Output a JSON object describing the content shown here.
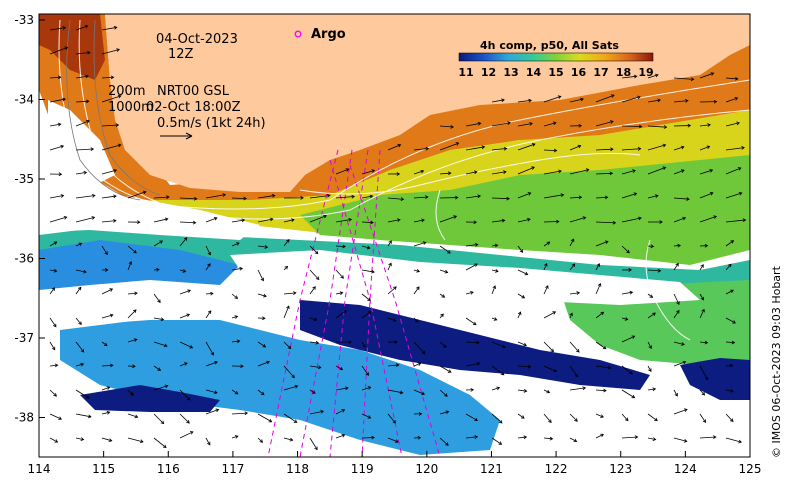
{
  "map": {
    "date": "04-Oct-2023",
    "hour": "12Z",
    "legend_argo": "Argo",
    "contour_label_200": "200m",
    "contour_label_1000": "1000m",
    "product": "NRT00 GSL",
    "product_time": "02-Oct 18:00Z",
    "scale_label": "0.5m/s (1kt 24h)",
    "colorbar_title": "4h comp, p50, All Sats",
    "colorbar_ticks": [
      "11",
      "12",
      "13",
      "14",
      "15",
      "16",
      "17",
      "18",
      "19"
    ],
    "credit": "© IMOS 06-Oct-2023 09:03 Hobart",
    "x_ticks": [
      "114",
      "115",
      "116",
      "117",
      "118",
      "119",
      "120",
      "121",
      "122",
      "123",
      "124",
      "125"
    ],
    "y_ticks": [
      "-33",
      "-34",
      "-35",
      "-36",
      "-37",
      "-38"
    ],
    "colors": {
      "land": "#fdc99d",
      "cold": "#0a1a7a",
      "cool": "#2e8fe0",
      "mid": "#36c9a0",
      "green": "#7fd23a",
      "yellow": "#e8d51a",
      "orange": "#e8931a",
      "warm": "#b8430e",
      "argo": "#ff00ff"
    }
  }
}
